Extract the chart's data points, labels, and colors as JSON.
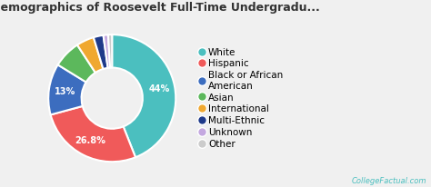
{
  "title": "Racial-Ethnic Demographics of Roosevelt Full-Time Undergradu...",
  "slices": [
    44,
    26.8,
    13,
    7,
    4.5,
    2.5,
    1.2,
    1.0
  ],
  "labels": [
    "White",
    "Hispanic",
    "Black or African\nAmerican",
    "Asian",
    "International",
    "Multi-Ethnic",
    "Unknown",
    "Other"
  ],
  "legend_labels": [
    "White",
    "Hispanic",
    "Black or African\nAmerican",
    "Asian",
    "International",
    "Multi-Ethnic",
    "Unknown",
    "Other"
  ],
  "colors": [
    "#4BBFBF",
    "#F05A5A",
    "#3C6DBF",
    "#5CB85C",
    "#F0A830",
    "#1F3A8A",
    "#C4A8E0",
    "#CCCCCC"
  ],
  "background_color": "#F0F0F0",
  "text_color": "#333333",
  "title_fontsize": 9,
  "legend_fontsize": 7.5,
  "watermark": "CollegeFactual.com",
  "watermark_color": "#4BBFBF"
}
